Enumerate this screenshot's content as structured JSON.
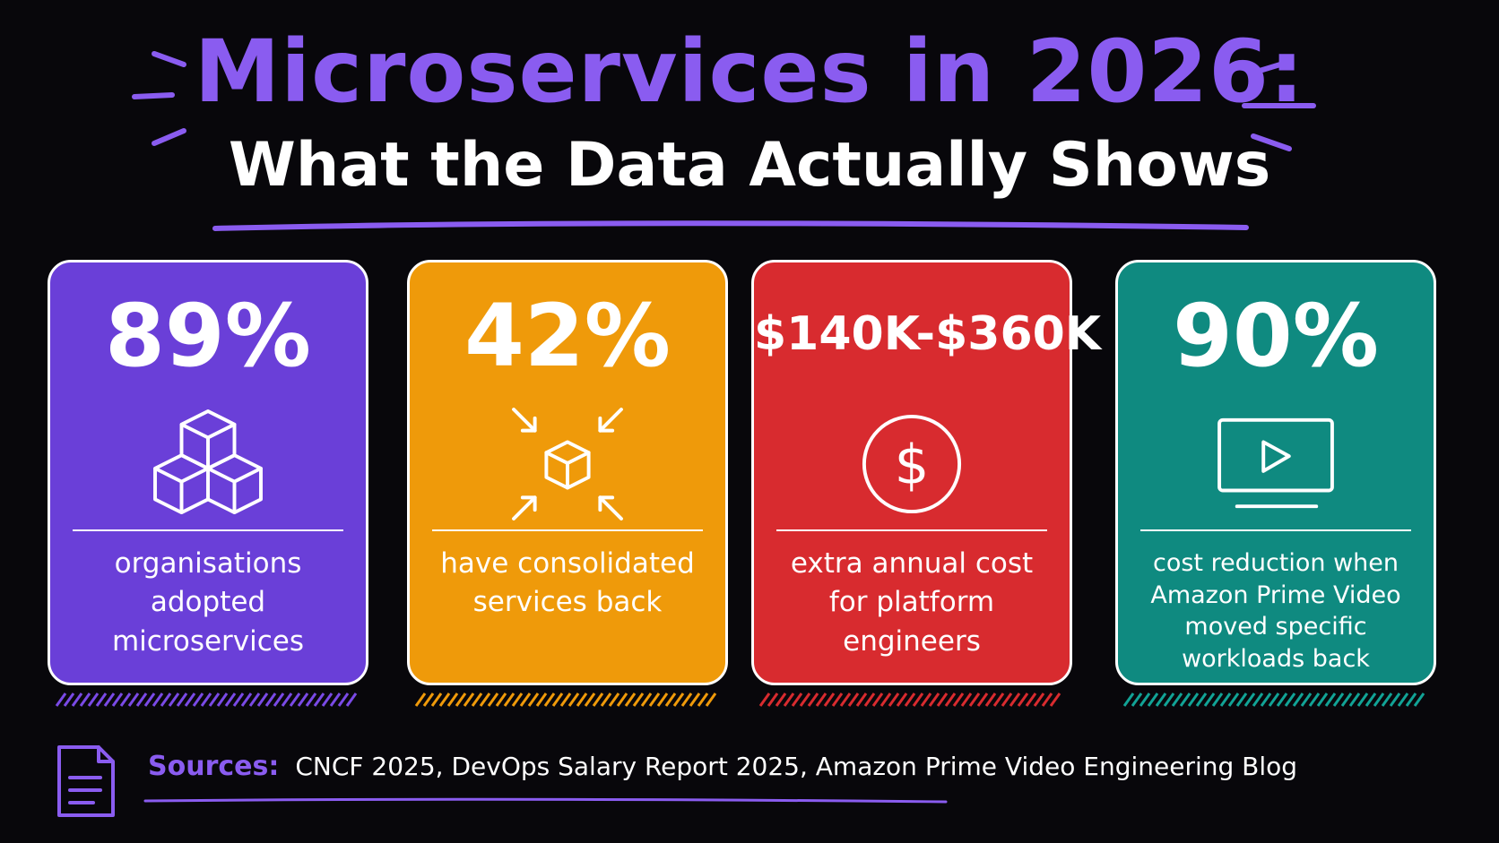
{
  "title": {
    "line1": "Microservices in 2026:",
    "line2": "What the Data Actually Shows"
  },
  "colors": {
    "accent_purple": "#8a5cf0",
    "card_purple": "#6a3fd8",
    "card_orange": "#ef9a0a",
    "card_red": "#d82b2f",
    "card_teal": "#0f8a80"
  },
  "cards": [
    {
      "stat": "89%",
      "icon": "stacked-cubes-icon",
      "description": "organisations adopted microservices",
      "color": "#6a3fd8"
    },
    {
      "stat": "42%",
      "icon": "consolidate-cube-icon",
      "description": "have consolidated services back",
      "color": "#ef9a0a"
    },
    {
      "stat": "$140K-$360K",
      "icon": "dollar-coin-icon",
      "description": "extra annual cost for platform engineers",
      "color": "#d82b2f"
    },
    {
      "stat": "90%",
      "icon": "video-play-icon",
      "description": "cost reduction when Amazon Prime Video moved specific workloads back",
      "color": "#0f8a80"
    }
  ],
  "sources": {
    "label": "Sources:",
    "text": "CNCF 2025, DevOps Salary Report 2025, Amazon Prime Video Engineering Blog",
    "icon": "document-icon"
  }
}
